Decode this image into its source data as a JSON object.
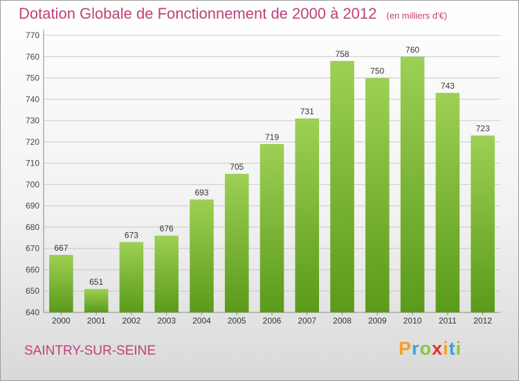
{
  "title": "Dotation Globale de Fonctionnement de 2000 à 2012",
  "subtitle": "(en milliers d'€)",
  "city": "SAINTRY-SUR-SEINE",
  "logo": {
    "letters": [
      "P",
      "r",
      "o",
      "x",
      "i",
      "t",
      "i"
    ],
    "colors": [
      "#f2a02a",
      "#3aa3d8",
      "#8cc63e",
      "#e2312d",
      "#f2a02a",
      "#3aa3d8",
      "#8cc63e"
    ]
  },
  "colors": {
    "bar_top": "#9dd054",
    "bar_bottom": "#5a9a1a",
    "title": "#c0407a"
  },
  "chart_data": {
    "type": "bar",
    "categories": [
      "2000",
      "2001",
      "2002",
      "2003",
      "2004",
      "2005",
      "2006",
      "2007",
      "2008",
      "2009",
      "2010",
      "2011",
      "2012"
    ],
    "values": [
      667,
      651,
      673,
      676,
      693,
      705,
      719,
      731,
      758,
      750,
      760,
      743,
      723
    ],
    "data_labels": [
      "667",
      "651",
      "673",
      "676",
      "693",
      "705",
      "719",
      "731",
      "758",
      "750",
      "760",
      "743",
      "723"
    ],
    "yticks": [
      "640",
      "650",
      "660",
      "670",
      "680",
      "690",
      "700",
      "710",
      "720",
      "730",
      "740",
      "750",
      "760",
      "770"
    ],
    "ylim": [
      640,
      770
    ],
    "grid": true,
    "legend": "none"
  }
}
